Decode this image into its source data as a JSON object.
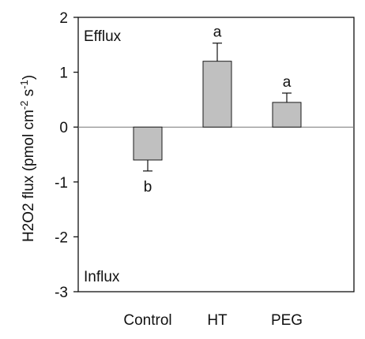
{
  "chart_data": {
    "type": "bar",
    "categories": [
      "Control",
      "HT",
      "PEG"
    ],
    "values": [
      -0.6,
      1.2,
      0.45
    ],
    "errors": [
      0.2,
      0.33,
      0.17
    ],
    "significance": [
      "b",
      "a",
      "a"
    ],
    "ylabel": {
      "base": "H2O2 flux (pmol cm",
      "exp1": "-2",
      "mid": " s",
      "exp2": "-1",
      "end": ")"
    },
    "ylim": [
      -3,
      2
    ],
    "yticks": [
      "-3",
      "-2",
      "-1",
      "0",
      "1",
      "2"
    ],
    "corner_labels": {
      "top": "Efflux",
      "bottom": "Influx"
    },
    "zero_line": true,
    "grid": false,
    "bar_color": "#c0c0c0",
    "bar_edge_color": "#1a1a1a"
  }
}
